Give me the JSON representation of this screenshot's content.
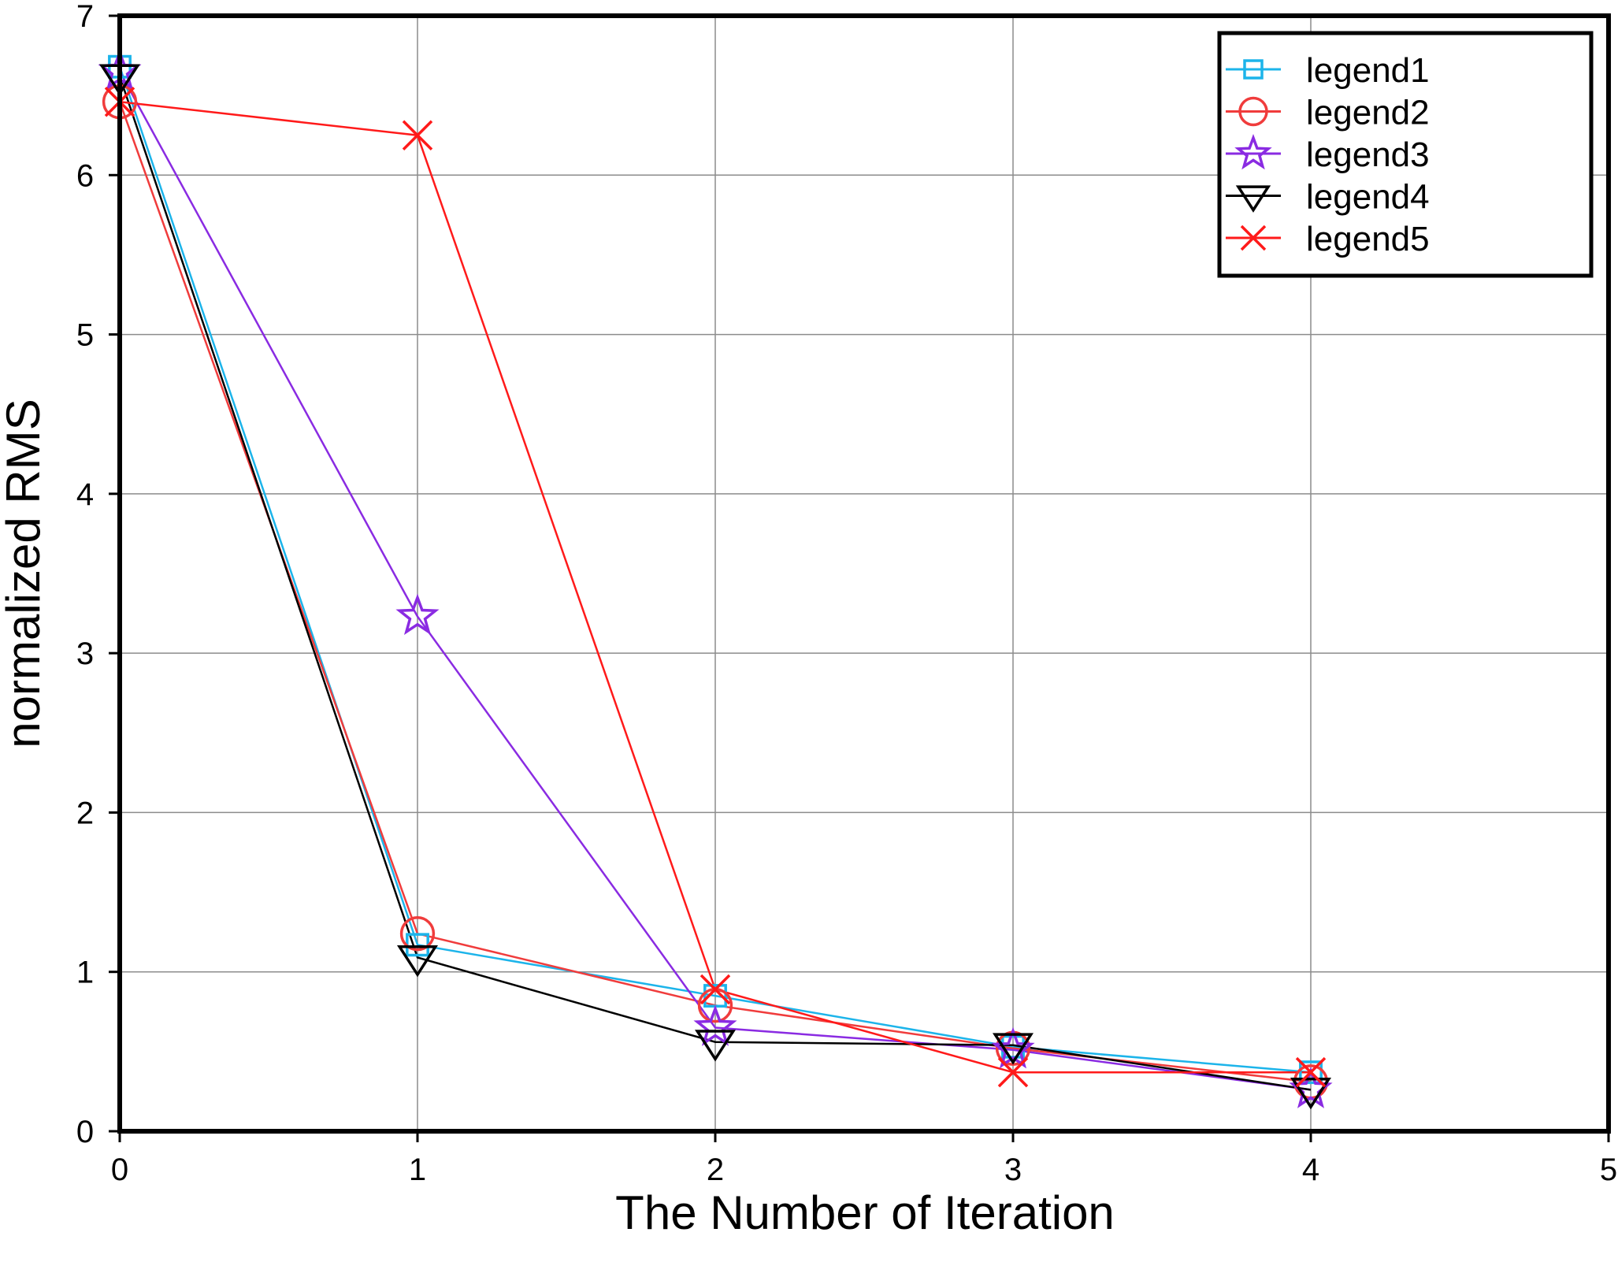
{
  "chart_data": {
    "type": "line",
    "title": "",
    "xlabel": "The Number of Iteration",
    "ylabel": "normalized RMS",
    "xlim": [
      0,
      5
    ],
    "ylim": [
      0,
      7
    ],
    "xticks": [
      "0",
      "1",
      "2",
      "3",
      "4",
      "5"
    ],
    "yticks": [
      "0",
      "1",
      "2",
      "3",
      "4",
      "5",
      "6",
      "7"
    ],
    "grid": true,
    "legend_position": "top-right",
    "x": [
      0,
      1,
      2,
      3,
      4
    ],
    "series": [
      {
        "name": "legend1",
        "color": "#1cb4ea",
        "marker": "square",
        "values": [
          6.68,
          1.17,
          0.85,
          0.53,
          0.37
        ]
      },
      {
        "name": "legend2",
        "color": "#f03c3c",
        "marker": "circle",
        "values": [
          6.46,
          1.24,
          0.79,
          0.52,
          0.31
        ]
      },
      {
        "name": "legend3",
        "color": "#8a2be2",
        "marker": "star",
        "values": [
          6.65,
          3.23,
          0.65,
          0.51,
          0.26
        ]
      },
      {
        "name": "legend4",
        "color": "#000000",
        "marker": "triangle-down",
        "values": [
          6.62,
          1.09,
          0.56,
          0.54,
          0.26
        ]
      },
      {
        "name": "legend5",
        "color": "#ff1a1a",
        "marker": "x",
        "values": [
          6.46,
          6.25,
          0.89,
          0.37,
          0.37
        ]
      }
    ]
  }
}
